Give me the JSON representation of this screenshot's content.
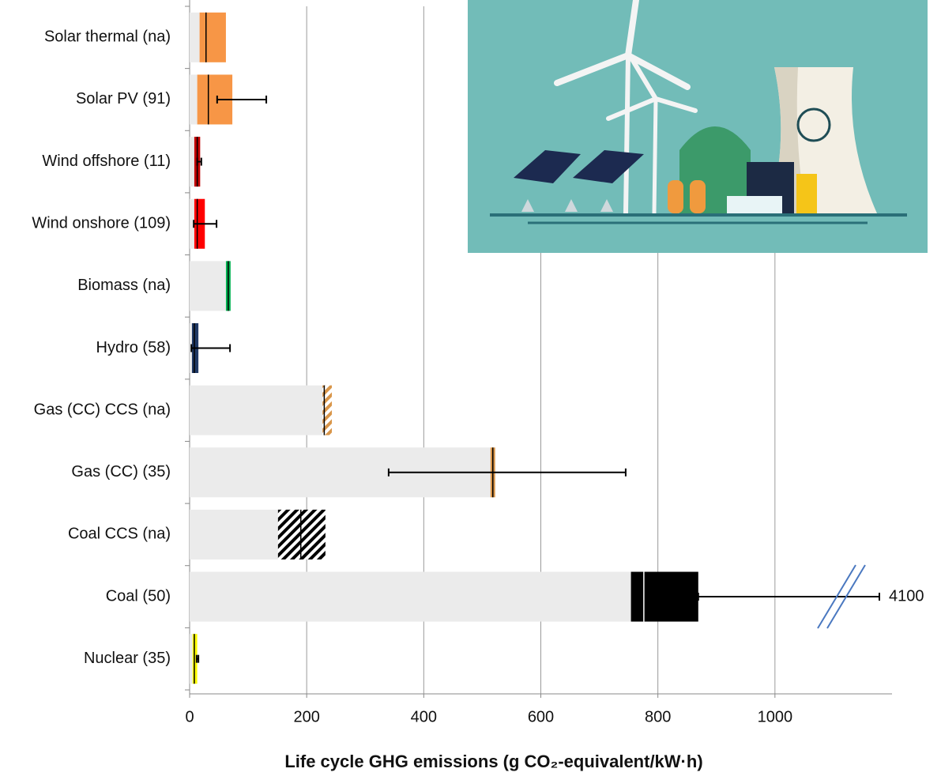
{
  "chart_data": {
    "type": "box",
    "x_label": "Life cycle GHG emissions (g CO₂-equivalent/kW·h)",
    "categories": [
      "Solar thermal (na)",
      "Solar PV (91)",
      "Wind offshore (11)",
      "Wind onshore (109)",
      "Biomass (na)",
      "Hydro (58)",
      "Gas (CC) CCS (na)",
      "Gas (CC) (35)",
      "Coal CCS (na)",
      "Coal (50)",
      "Nuclear (35)"
    ],
    "boxes": [
      {
        "q1": 17,
        "median": 28,
        "q3": 62,
        "color": "#f79646",
        "hatched": false
      },
      {
        "q1": 13,
        "median": 32,
        "q3": 73,
        "whisker": [
          47,
          131
        ],
        "color": "#f79646",
        "hatched": false
      },
      {
        "q1": 8,
        "median": 13,
        "q3": 18,
        "whisker": [
          13,
          20
        ],
        "color": "#c00000",
        "hatched": false
      },
      {
        "q1": 8,
        "median": 13,
        "q3": 26,
        "whisker": [
          7,
          46
        ],
        "color": "#ff0000",
        "hatched": false
      },
      {
        "q1": 62,
        "median": 66,
        "q3": 70,
        "color": "#00b050",
        "hatched": false
      },
      {
        "q1": 4,
        "median": 8,
        "q3": 15,
        "whisker": [
          3,
          69
        ],
        "color": "#1f3864",
        "hatched": false
      },
      {
        "q1": 227,
        "median": 230,
        "q3": 243,
        "color": "#d9964a",
        "hatched": true
      },
      {
        "q1": 514,
        "median": 518,
        "q3": 522,
        "whisker": [
          340,
          745
        ],
        "color": "#d9964a",
        "hatched": false
      },
      {
        "q1": 151,
        "median": 190,
        "q3": 232,
        "color": "#000000",
        "hatched": true
      },
      {
        "q1": 754,
        "median": 776,
        "q3": 869,
        "whisker": [
          869,
          4100
        ],
        "color": "#000000",
        "hatched": false
      },
      {
        "q1": 5,
        "median": 8,
        "q3": 13,
        "whisker": [
          12,
          15
        ],
        "color": "#ffff00",
        "hatched": false
      }
    ],
    "xlim": [
      0,
      1200
    ],
    "xticks": [
      0,
      200,
      400,
      600,
      800,
      1000
    ],
    "grid": true
  }
}
